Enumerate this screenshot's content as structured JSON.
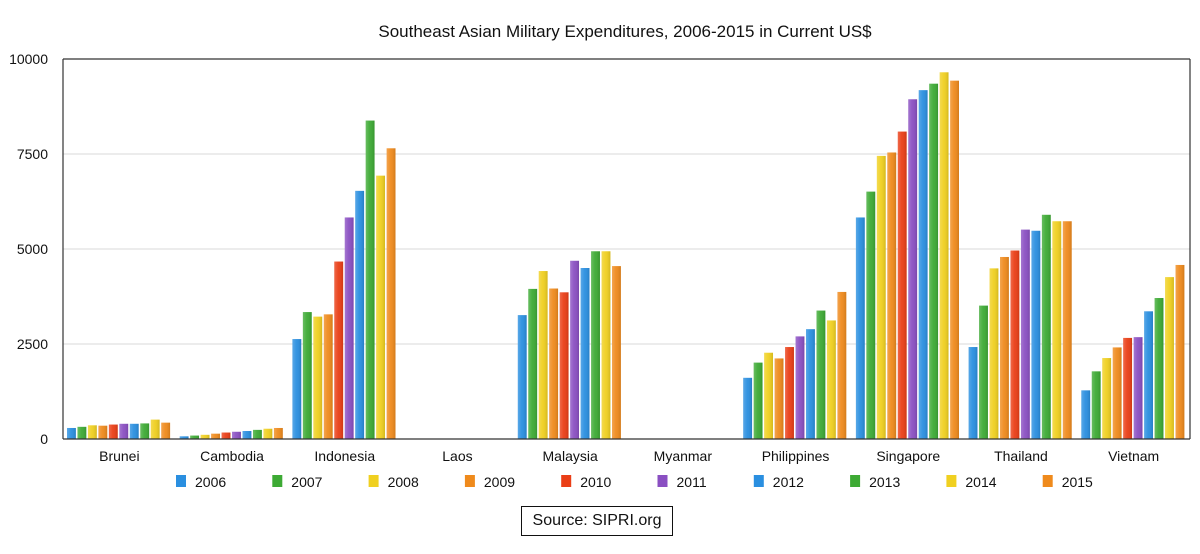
{
  "chart_data": {
    "type": "bar",
    "title": "Southeast Asian Military Expenditures, 2006-2015 in Current US$",
    "xlabel": "",
    "ylabel": "",
    "ylim": [
      0,
      10000
    ],
    "yticks": [
      0,
      2500,
      5000,
      7500,
      10000
    ],
    "grid": true,
    "legend_position": "bottom",
    "categories": [
      "Brunei",
      "Cambodia",
      "Indonesia",
      "Laos",
      "Malaysia",
      "Myanmar",
      "Philippines",
      "Singapore",
      "Thailand",
      "Vietnam"
    ],
    "series": [
      {
        "name": "2006",
        "color": "#2a8fe0",
        "values": [
          290,
          70,
          2630,
          0,
          3260,
          0,
          1610,
          5830,
          2420,
          1280
        ]
      },
      {
        "name": "2007",
        "color": "#3daa34",
        "values": [
          320,
          90,
          3340,
          0,
          3950,
          0,
          2010,
          6510,
          3510,
          1780
        ]
      },
      {
        "name": "2008",
        "color": "#f0d020",
        "values": [
          360,
          110,
          3220,
          0,
          4420,
          0,
          2270,
          7450,
          4490,
          2130
        ]
      },
      {
        "name": "2009",
        "color": "#ef8a1c",
        "values": [
          350,
          140,
          3280,
          0,
          3960,
          0,
          2120,
          7540,
          4790,
          2410
        ]
      },
      {
        "name": "2010",
        "color": "#ea3e16",
        "values": [
          380,
          170,
          4670,
          0,
          3860,
          0,
          2420,
          8090,
          4960,
          2660
        ]
      },
      {
        "name": "2011",
        "color": "#8a4fc2",
        "values": [
          400,
          190,
          5830,
          0,
          4690,
          0,
          2700,
          8940,
          5510,
          2680
        ]
      },
      {
        "name": "2012",
        "color": "#2a8fe0",
        "values": [
          400,
          210,
          6530,
          0,
          4500,
          0,
          2890,
          9180,
          5480,
          3360
        ]
      },
      {
        "name": "2013",
        "color": "#3daa34",
        "values": [
          410,
          240,
          8380,
          0,
          4940,
          0,
          3380,
          9350,
          5900,
          3710
        ]
      },
      {
        "name": "2014",
        "color": "#f0d020",
        "values": [
          510,
          270,
          6930,
          0,
          4940,
          0,
          3120,
          9650,
          5730,
          4260
        ]
      },
      {
        "name": "2015",
        "color": "#ef8a1c",
        "values": [
          430,
          290,
          7650,
          0,
          4550,
          0,
          3870,
          9430,
          5730,
          4580
        ]
      }
    ],
    "source_label": "Source: SIPRI.org"
  }
}
